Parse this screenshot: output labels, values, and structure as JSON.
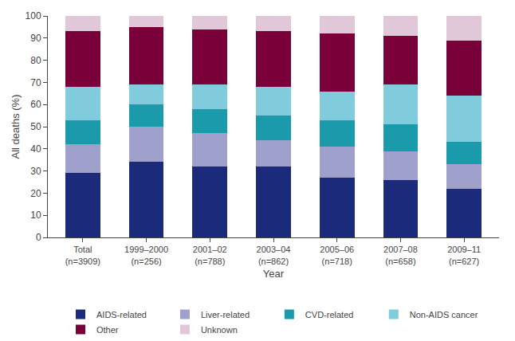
{
  "chart_data": {
    "type": "bar",
    "stacked": true,
    "xlabel": "Year",
    "ylabel": "All deaths (%)",
    "categories": [
      "Total\n(n=3909)",
      "1999–2000\n(n=256)",
      "2001–02\n(n=788)",
      "2003–04\n(n=862)",
      "2005–06\n(n=718)",
      "2007–08\n(n=658)",
      "2009–11\n(n=627)"
    ],
    "series": [
      {
        "name": "AIDS-related",
        "color": "#1b2a7b",
        "values": [
          29,
          34,
          32,
          32,
          27,
          26,
          22
        ]
      },
      {
        "name": "Liver-related",
        "color": "#a0a0cc",
        "values": [
          13,
          16,
          15,
          12,
          14,
          13,
          11
        ]
      },
      {
        "name": "CVD-related",
        "color": "#1a9aaa",
        "values": [
          11,
          10,
          11,
          11,
          12,
          12,
          10
        ]
      },
      {
        "name": "Non-AIDS cancer",
        "color": "#80ccdd",
        "values": [
          15,
          9,
          11,
          13,
          13,
          18,
          21
        ]
      },
      {
        "name": "Other",
        "color": "#7a003a",
        "values": [
          25,
          26,
          25,
          25,
          26,
          22,
          25
        ]
      },
      {
        "name": "Unknown",
        "color": "#e0c8d8",
        "values": [
          7,
          5,
          6,
          7,
          8,
          9,
          11
        ]
      }
    ],
    "ylim": [
      0,
      100
    ],
    "yticks": [
      0,
      10,
      20,
      30,
      40,
      50,
      60,
      70,
      80,
      90,
      100
    ],
    "grid": false,
    "legend": "bottom"
  }
}
